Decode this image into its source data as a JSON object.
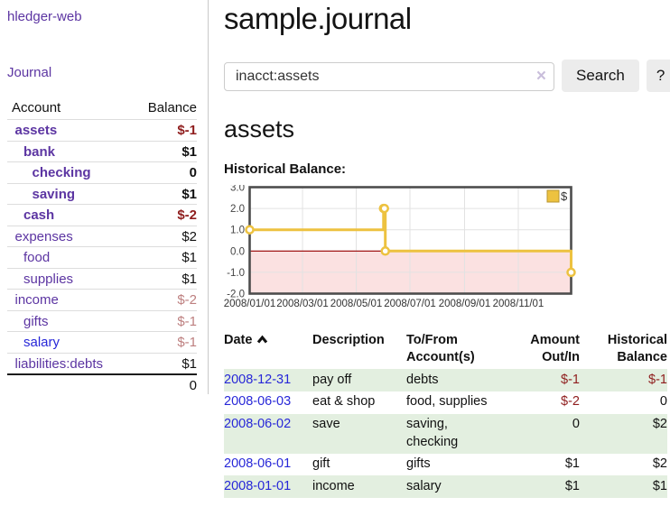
{
  "colors": {
    "link_purple": "#5c35a2",
    "link_blue": "#2727d8",
    "negative_strong": "#8f1d1d",
    "negative_muted": "#bd7f7f",
    "row_stripe_green": "#e3efe0",
    "chart_gold": "#edc240",
    "chart_gold_border": "#b89530",
    "chart_negative_fill": "#fbe1e1",
    "chart_zero_line": "#990000",
    "chart_border": "#4d4d4d",
    "chart_grid": "#e2e2e2"
  },
  "sidebar": {
    "brand": "hledger-web",
    "nav_journal": "Journal",
    "accounts_table": {
      "col_account": "Account",
      "col_balance": "Balance",
      "rows": [
        {
          "account": "assets",
          "balance": "$-1",
          "depth": 1,
          "bold": true,
          "negative": "strong",
          "link_style": "purple"
        },
        {
          "account": "bank",
          "balance": "$1",
          "depth": 2,
          "bold": true,
          "negative": null,
          "link_style": "purple"
        },
        {
          "account": "checking",
          "balance": "0",
          "depth": 3,
          "bold": true,
          "negative": null,
          "link_style": "purple"
        },
        {
          "account": "saving",
          "balance": "$1",
          "depth": 3,
          "bold": true,
          "negative": null,
          "link_style": "purple"
        },
        {
          "account": "cash",
          "balance": "$-2",
          "depth": 2,
          "bold": true,
          "negative": "strong",
          "link_style": "purple"
        },
        {
          "account": "expenses",
          "balance": "$2",
          "depth": 1,
          "bold": false,
          "negative": null,
          "link_style": "purple"
        },
        {
          "account": "food",
          "balance": "$1",
          "depth": 2,
          "bold": false,
          "negative": null,
          "link_style": "purple"
        },
        {
          "account": "supplies",
          "balance": "$1",
          "depth": 2,
          "bold": false,
          "negative": null,
          "link_style": "purple"
        },
        {
          "account": "income",
          "balance": "$-2",
          "depth": 1,
          "bold": false,
          "negative": "muted",
          "link_style": "purple"
        },
        {
          "account": "gifts",
          "balance": "$-1",
          "depth": 2,
          "bold": false,
          "negative": "muted",
          "link_style": "purple"
        },
        {
          "account": "salary",
          "balance": "$-1",
          "depth": 2,
          "bold": false,
          "negative": "muted",
          "link_style": "blue"
        },
        {
          "account": "liabilities:debts",
          "balance": "$1",
          "depth": 1,
          "bold": false,
          "negative": null,
          "link_style": "purple"
        }
      ],
      "total": "0"
    }
  },
  "main": {
    "title": "sample.journal",
    "search": {
      "value": "inacct:assets",
      "clear_icon": "×",
      "search_button": "Search",
      "help_button": "?"
    },
    "account_heading": "assets",
    "chart_title": "Historical Balance:"
  },
  "chart_data": {
    "type": "line",
    "step": true,
    "title": "Historical Balance:",
    "series": [
      {
        "name": "$",
        "color": "#edc240",
        "points": [
          [
            "2008-01-01",
            1
          ],
          [
            "2008-06-01",
            2
          ],
          [
            "2008-06-02",
            2
          ],
          [
            "2008-06-03",
            0
          ],
          [
            "2008-12-31",
            -1
          ]
        ]
      }
    ],
    "x_ticks": [
      "2008/01/01",
      "2008/03/01",
      "2008/05/01",
      "2008/07/01",
      "2008/09/01",
      "2008/11/01"
    ],
    "y_ticks": [
      "3.0",
      "2.0",
      "1.0",
      "0.0",
      "-1.0",
      "-2.0"
    ],
    "ylim": [
      -2,
      3
    ],
    "grid": true,
    "legend": "$",
    "legend_position": "top-right",
    "negative_region_shaded": true
  },
  "register": {
    "headers": {
      "date": [
        "Date"
      ],
      "description": [
        "Description"
      ],
      "accounts": [
        "To/From",
        "Account(s)"
      ],
      "amount": [
        "Amount",
        "Out/In"
      ],
      "balance": [
        "Historical",
        "Balance"
      ]
    },
    "sort_icon": "chevron-up",
    "rows": [
      {
        "date": "2008-12-31",
        "description": "pay off",
        "accounts": [
          "debts"
        ],
        "amount": "$-1",
        "amount_negative": true,
        "balance": "$-1",
        "balance_negative": true
      },
      {
        "date": "2008-06-03",
        "description": "eat & shop",
        "accounts": [
          "food, supplies"
        ],
        "amount": "$-2",
        "amount_negative": true,
        "balance": "0",
        "balance_negative": false
      },
      {
        "date": "2008-06-02",
        "description": "save",
        "accounts": [
          "saving,",
          "checking"
        ],
        "amount": "0",
        "amount_negative": false,
        "balance": "$2",
        "balance_negative": false
      },
      {
        "date": "2008-06-01",
        "description": "gift",
        "accounts": [
          "gifts"
        ],
        "amount": "$1",
        "amount_negative": false,
        "balance": "$2",
        "balance_negative": false
      },
      {
        "date": "2008-01-01",
        "description": "income",
        "accounts": [
          "salary"
        ],
        "amount": "$1",
        "amount_negative": false,
        "balance": "$1",
        "balance_negative": false
      }
    ]
  }
}
